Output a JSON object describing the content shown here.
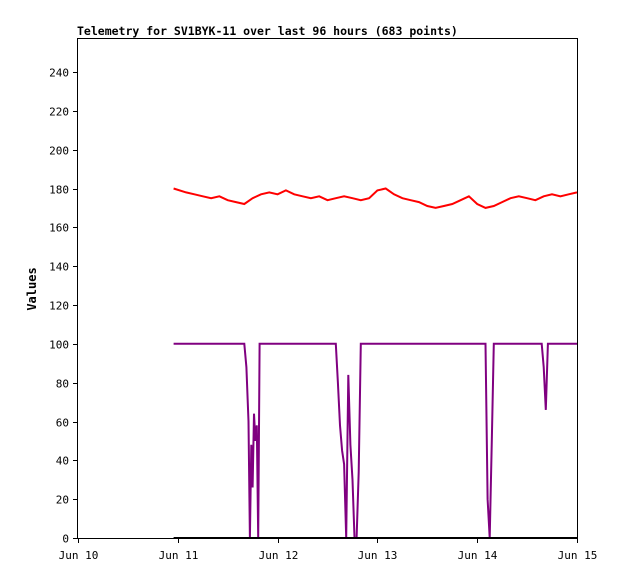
{
  "chart_data": {
    "type": "line",
    "title": "Telemetry for SV1BYK-11 over last 96 hours (683 points)",
    "xlabel": "",
    "ylabel": "Values",
    "x_ticks": [
      "Jun 10",
      "Jun 11",
      "Jun 12",
      "Jun 13",
      "Jun 14",
      "Jun 15"
    ],
    "xlim": [
      "2024-06-10T00:00",
      "2024-06-15T00:00"
    ],
    "y_ticks": [
      0,
      20,
      40,
      60,
      80,
      100,
      120,
      140,
      160,
      180,
      200,
      220,
      240
    ],
    "ylim": [
      0,
      257
    ],
    "grid": false,
    "legend": "none",
    "series": [
      {
        "color": "#ff0000",
        "x": [
          "2024-06-10T23:00",
          "2024-06-11T02:00",
          "2024-06-11T04:00",
          "2024-06-11T06:00",
          "2024-06-11T08:00",
          "2024-06-11T10:00",
          "2024-06-11T12:00",
          "2024-06-11T14:00",
          "2024-06-11T16:00",
          "2024-06-11T18:00",
          "2024-06-11T20:00",
          "2024-06-11T22:00",
          "2024-06-12T00:00",
          "2024-06-12T02:00",
          "2024-06-12T04:00",
          "2024-06-12T06:00",
          "2024-06-12T08:00",
          "2024-06-12T10:00",
          "2024-06-12T12:00",
          "2024-06-12T14:00",
          "2024-06-12T16:00",
          "2024-06-12T18:00",
          "2024-06-12T20:00",
          "2024-06-12T22:00",
          "2024-06-13T00:00",
          "2024-06-13T02:00",
          "2024-06-13T04:00",
          "2024-06-13T06:00",
          "2024-06-13T08:00",
          "2024-06-13T10:00",
          "2024-06-13T12:00",
          "2024-06-13T14:00",
          "2024-06-13T16:00",
          "2024-06-13T18:00",
          "2024-06-13T20:00",
          "2024-06-13T22:00",
          "2024-06-14T00:00",
          "2024-06-14T02:00",
          "2024-06-14T04:00",
          "2024-06-14T06:00",
          "2024-06-14T08:00",
          "2024-06-14T10:00",
          "2024-06-14T12:00",
          "2024-06-14T14:00",
          "2024-06-14T16:00",
          "2024-06-14T18:00",
          "2024-06-14T20:00",
          "2024-06-14T22:00",
          "2024-06-15T00:00"
        ],
        "values": [
          180,
          178,
          177,
          176,
          175,
          176,
          174,
          173,
          172,
          175,
          177,
          178,
          177,
          179,
          177,
          176,
          175,
          176,
          174,
          175,
          176,
          175,
          174,
          175,
          179,
          180,
          177,
          175,
          174,
          173,
          171,
          170,
          171,
          172,
          174,
          176,
          172,
          170,
          171,
          173,
          175,
          176,
          175,
          174,
          176,
          177,
          176,
          177,
          178
        ]
      },
      {
        "color": "#800080",
        "x": [
          "2024-06-10T23:00",
          "2024-06-11T16:00",
          "2024-06-11T16:30",
          "2024-06-11T17:00",
          "2024-06-11T17:20",
          "2024-06-11T17:40",
          "2024-06-11T18:00",
          "2024-06-11T18:20",
          "2024-06-11T18:40",
          "2024-06-11T19:00",
          "2024-06-11T19:20",
          "2024-06-11T19:40",
          "2024-06-11T20:00",
          "2024-06-11T20:30",
          "2024-06-11T21:00",
          "2024-06-11T21:30",
          "2024-06-12T14:00",
          "2024-06-12T14:30",
          "2024-06-12T15:00",
          "2024-06-12T15:30",
          "2024-06-12T16:00",
          "2024-06-12T16:30",
          "2024-06-12T17:00",
          "2024-06-12T17:30",
          "2024-06-12T18:00",
          "2024-06-12T18:30",
          "2024-06-12T19:00",
          "2024-06-12T19:30",
          "2024-06-12T20:00",
          "2024-06-12T20:30",
          "2024-06-14T02:00",
          "2024-06-14T02:30",
          "2024-06-14T03:00",
          "2024-06-14T03:30",
          "2024-06-14T04:00",
          "2024-06-14T15:00",
          "2024-06-14T15:30",
          "2024-06-14T16:00",
          "2024-06-14T16:30",
          "2024-06-14T17:00",
          "2024-06-15T00:00"
        ],
        "values": [
          100,
          100,
          88,
          60,
          0,
          48,
          26,
          64,
          50,
          58,
          0,
          100,
          100,
          100,
          100,
          100,
          100,
          80,
          58,
          45,
          38,
          0,
          84,
          48,
          30,
          0,
          0,
          34,
          100,
          100,
          100,
          20,
          0,
          50,
          100,
          100,
          100,
          88,
          66,
          100,
          100
        ]
      },
      {
        "color": "#000000",
        "x": [
          "2024-06-10T23:00",
          "2024-06-15T00:00"
        ],
        "values": [
          0,
          0
        ]
      }
    ]
  }
}
